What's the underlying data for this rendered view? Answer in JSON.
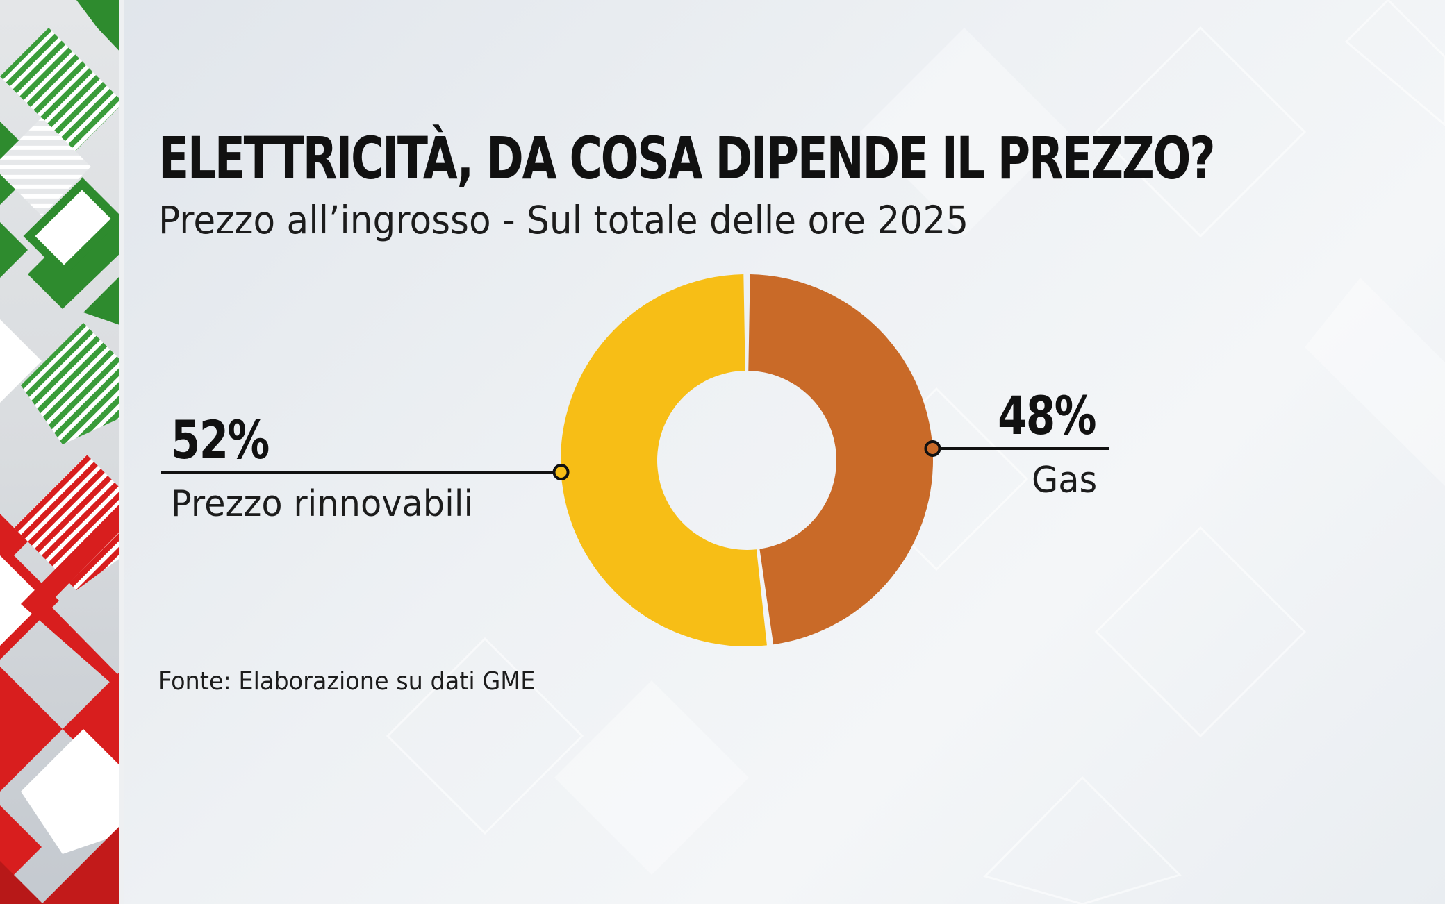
{
  "header": {
    "title": "ELETTRICITÀ, DA COSA DIPENDE IL PREZZO?",
    "subtitle": "Prezzo all’ingrosso - Sul totale delle ore 2025"
  },
  "chart_data": {
    "type": "pie",
    "style": "donut",
    "categories": [
      "Prezzo rinnovabili",
      "Gas"
    ],
    "values": [
      52,
      48
    ],
    "value_labels": [
      "52%",
      "48%"
    ],
    "colors": [
      "#F7BE16",
      "#C96A28"
    ],
    "title": "ELETTRICITÀ, DA COSA DIPENDE IL PREZZO?",
    "subtitle": "Prezzo all’ingrosso - Sul totale delle ore 2025",
    "legend": "none"
  },
  "footer": {
    "source": "Fonte: Elaborazione su dati GME"
  },
  "decor": {
    "band_green": "#2E8B2E",
    "band_red": "#D81E1E",
    "band_white": "#FFFFFF",
    "band_grey": "#C9CDD2"
  }
}
